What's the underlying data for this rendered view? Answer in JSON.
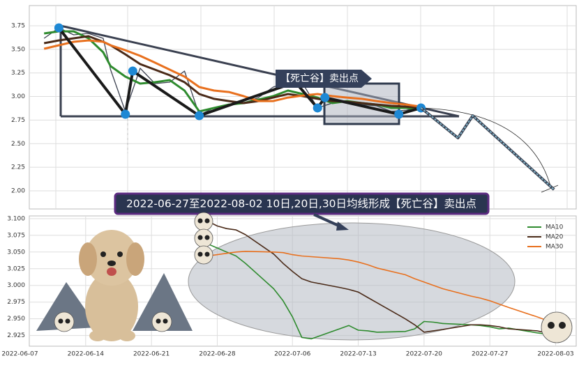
{
  "chart_data": [
    {
      "type": "line",
      "ylim": [
        1.808,
        3.964
      ],
      "yticks": [
        {
          "value": 2.0,
          "label": "2.00"
        },
        {
          "value": 2.25,
          "label": "2.25"
        },
        {
          "value": 2.5,
          "label": "2.50"
        },
        {
          "value": 2.75,
          "label": "2.75"
        },
        {
          "value": 3.0,
          "label": "3.00"
        },
        {
          "value": 3.25,
          "label": "3.25"
        },
        {
          "value": 3.5,
          "label": "3.50"
        },
        {
          "value": 3.75,
          "label": "3.75"
        }
      ],
      "xlim": [
        "2022-06-05",
        "2022-08-18"
      ],
      "grid": true,
      "x": [
        "2022-06-07",
        "2022-06-09",
        "2022-06-11",
        "2022-06-13",
        "2022-06-15",
        "2022-06-16",
        "2022-06-18",
        "2022-06-20",
        "2022-06-22",
        "2022-06-24",
        "2022-06-26",
        "2022-06-28",
        "2022-06-30",
        "2022-07-02",
        "2022-07-04",
        "2022-07-06",
        "2022-07-08",
        "2022-07-10",
        "2022-07-12",
        "2022-07-14",
        "2022-07-16",
        "2022-07-18",
        "2022-07-20",
        "2022-07-22",
        "2022-07-24",
        "2022-07-26",
        "2022-07-28"
      ],
      "series": [
        {
          "color": "#3c4150",
          "values": [
            3.617,
            3.728,
            3.654,
            3.669,
            3.617,
            3.285,
            2.842,
            3.3,
            3.137,
            3.152,
            3.27,
            2.805,
            2.879,
            2.915,
            2.93,
            2.989,
            3.1,
            3.152,
            3.137,
            2.879,
            2.93,
            2.952,
            2.915,
            2.901,
            2.842,
            2.856,
            2.879
          ]
        },
        {
          "color": "#2e8b2e",
          "values": [
            3.669,
            3.691,
            3.691,
            3.617,
            3.469,
            3.322,
            3.211,
            3.137,
            3.152,
            3.174,
            3.063,
            2.842,
            2.879,
            2.915,
            2.93,
            2.967,
            3.004,
            3.063,
            3.026,
            2.989,
            2.93,
            2.952,
            2.93,
            2.915,
            2.879,
            2.879,
            2.856
          ]
        },
        {
          "color": "#4a2a18",
          "values": [
            3.565,
            3.595,
            3.617,
            3.639,
            3.58,
            3.543,
            3.447,
            3.344,
            3.285,
            3.226,
            3.152,
            3.026,
            2.975,
            2.952,
            2.93,
            2.952,
            2.989,
            3.026,
            3.004,
            2.975,
            2.952,
            2.945,
            2.93,
            2.915,
            2.901,
            2.893,
            2.879
          ]
        },
        {
          "color": "#e8701e",
          "values": [
            3.506,
            3.543,
            3.58,
            3.595,
            3.58,
            3.543,
            3.491,
            3.432,
            3.359,
            3.285,
            3.211,
            3.1,
            3.063,
            3.048,
            3.004,
            2.952,
            2.952,
            2.989,
            3.011,
            3.026,
            3.004,
            2.989,
            2.975,
            2.952,
            2.93,
            2.915,
            2.893
          ]
        }
      ],
      "pattern": {
        "color": "#1a1a1a",
        "dot_color": "#1e88d4",
        "x": [
          "2022-06-09",
          "2022-06-18",
          "2022-06-19",
          "2022-06-28",
          "2022-07-11",
          "2022-07-14",
          "2022-07-15",
          "2022-07-25",
          "2022-07-28"
        ],
        "values": [
          3.728,
          2.812,
          3.27,
          2.797,
          3.152,
          2.879,
          2.989,
          2.812,
          2.879
        ]
      },
      "projection": {
        "color": "#7fb3c8",
        "x": [
          "2022-07-28",
          "2022-08-02",
          "2022-08-04",
          "2022-08-15"
        ],
        "values": [
          2.879,
          2.561,
          2.797,
          2.014
        ]
      },
      "annotation": "【死亡谷】卖出点",
      "banner": "2022-06-27至2022-08-02 10日,20日,30日均线形成【死亡谷】卖出点"
    },
    {
      "type": "line",
      "ylim": [
        2.909,
        3.104
      ],
      "yticks": [
        {
          "value": 2.925,
          "label": "2.925"
        },
        {
          "value": 2.95,
          "label": "2.950"
        },
        {
          "value": 2.975,
          "label": "2.975"
        },
        {
          "value": 3.0,
          "label": "3.000"
        },
        {
          "value": 3.025,
          "label": "3.025"
        },
        {
          "value": 3.05,
          "label": "3.050"
        },
        {
          "value": 3.075,
          "label": "3.075"
        },
        {
          "value": 3.1,
          "label": "3.100"
        }
      ],
      "xlim": [
        "2022-06-06",
        "2022-08-04"
      ],
      "xticks": [
        "2022-06-07",
        "2022-06-14",
        "2022-06-21",
        "2022-06-28",
        "2022-07-06",
        "2022-07-13",
        "2022-07-20",
        "2022-07-27",
        "2022-08-03"
      ],
      "grid": true,
      "legend": "upper right",
      "x": [
        "2022-06-27",
        "2022-06-28",
        "2022-06-29",
        "2022-06-30",
        "2022-07-01",
        "2022-07-04",
        "2022-07-05",
        "2022-07-06",
        "2022-07-07",
        "2022-07-08",
        "2022-07-11",
        "2022-07-12",
        "2022-07-13",
        "2022-07-14",
        "2022-07-15",
        "2022-07-18",
        "2022-07-19",
        "2022-07-20",
        "2022-07-21",
        "2022-07-22",
        "2022-07-25",
        "2022-07-26",
        "2022-07-27",
        "2022-07-28",
        "2022-07-29",
        "2022-08-01",
        "2022-08-02"
      ],
      "series": [
        {
          "name": "MA10",
          "color": "#2e8b2e",
          "values": [
            3.062,
            3.056,
            3.05,
            3.044,
            3.033,
            2.995,
            2.977,
            2.953,
            2.922,
            2.92,
            2.935,
            2.94,
            2.933,
            2.932,
            2.93,
            2.931,
            2.935,
            2.946,
            2.945,
            2.943,
            2.941,
            2.94,
            2.938,
            2.935,
            2.936,
            2.929,
            2.927
          ]
        },
        {
          "name": "MA20",
          "color": "#4a2a18",
          "values": [
            3.096,
            3.089,
            3.085,
            3.083,
            3.076,
            3.047,
            3.033,
            3.021,
            3.01,
            3.005,
            2.997,
            2.994,
            2.99,
            2.982,
            2.974,
            2.95,
            2.941,
            2.93,
            2.932,
            2.934,
            2.941,
            2.941,
            2.94,
            2.938,
            2.935,
            2.932,
            2.929
          ]
        },
        {
          "name": "MA30",
          "color": "#e8701e",
          "values": [
            3.044,
            3.046,
            3.048,
            3.05,
            3.051,
            3.05,
            3.049,
            3.046,
            3.044,
            3.043,
            3.04,
            3.038,
            3.035,
            3.031,
            3.026,
            3.016,
            3.01,
            3.005,
            3.0,
            2.995,
            2.984,
            2.981,
            2.977,
            2.972,
            2.967,
            2.953,
            2.948
          ]
        }
      ]
    }
  ]
}
